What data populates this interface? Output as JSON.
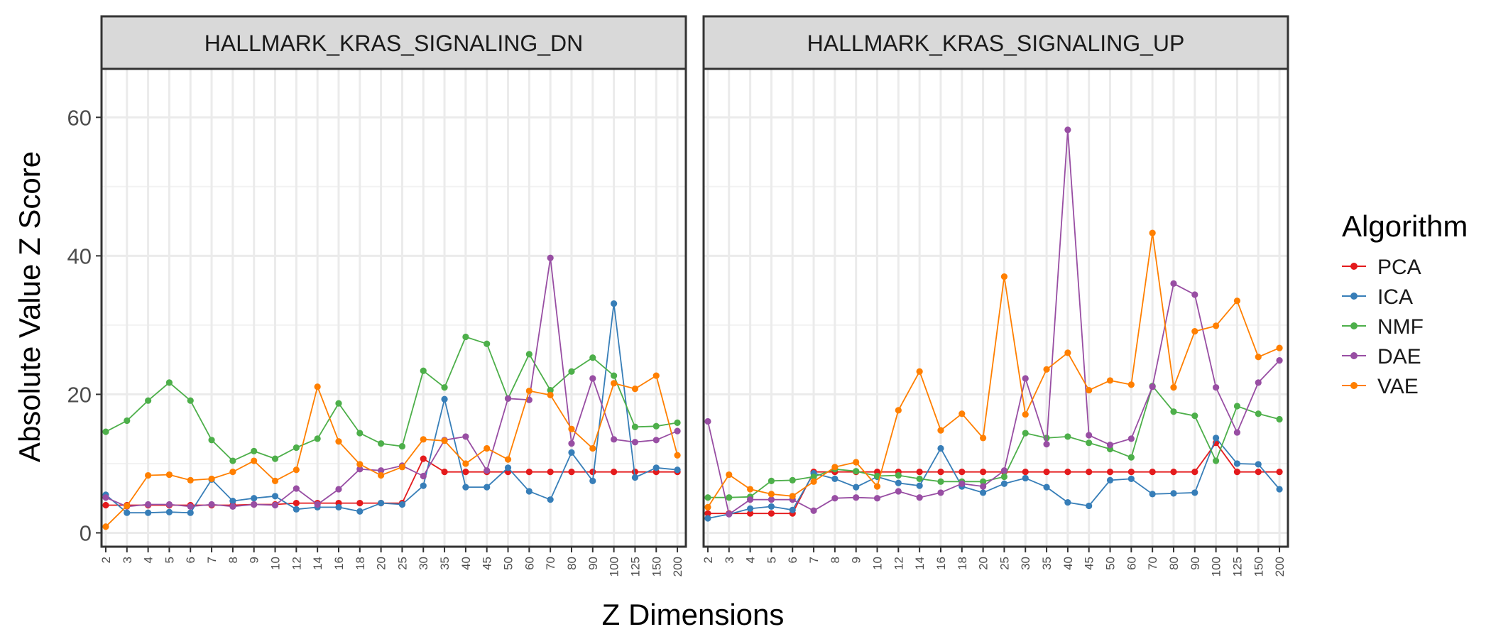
{
  "chart_data": {
    "type": "line",
    "ylabel": "Absolute Value Z Score",
    "xlabel": "Z Dimensions",
    "ylim": [
      -2,
      67
    ],
    "yticks": [
      0,
      20,
      40,
      60
    ],
    "grid": true,
    "legend": {
      "title": "Algorithm",
      "position": "right"
    },
    "categories": [
      "2",
      "3",
      "4",
      "5",
      "6",
      "7",
      "8",
      "9",
      "10",
      "12",
      "14",
      "16",
      "18",
      "20",
      "25",
      "30",
      "35",
      "40",
      "45",
      "50",
      "60",
      "70",
      "80",
      "90",
      "100",
      "125",
      "150",
      "200"
    ],
    "colors": {
      "PCA": "#e41a1c",
      "ICA": "#377eb8",
      "NMF": "#4daf4a",
      "DAE": "#984ea3",
      "VAE": "#ff7f00"
    },
    "panels": [
      {
        "title": "HALLMARK_KRAS_SIGNALING_DN",
        "series": [
          {
            "name": "PCA",
            "values": [
              4.0,
              4.0,
              4.0,
              4.0,
              4.0,
              4.0,
              4.0,
              4.1,
              4.1,
              4.3,
              4.3,
              4.3,
              4.3,
              4.3,
              4.3,
              10.7,
              8.8,
              8.8,
              8.8,
              8.8,
              8.8,
              8.8,
              8.8,
              8.8,
              8.8,
              8.8,
              8.8,
              8.8
            ]
          },
          {
            "name": "ICA",
            "values": [
              5.5,
              2.9,
              2.9,
              3.0,
              2.9,
              7.7,
              4.6,
              5.0,
              5.3,
              3.4,
              3.7,
              3.7,
              3.1,
              4.3,
              4.1,
              6.8,
              19.3,
              6.6,
              6.6,
              9.4,
              6.0,
              4.8,
              11.6,
              7.5,
              33.1,
              8.0,
              9.4,
              9.1
            ]
          },
          {
            "name": "NMF",
            "values": [
              14.6,
              16.2,
              19.1,
              21.7,
              19.1,
              13.4,
              10.4,
              11.8,
              10.7,
              12.3,
              13.6,
              18.7,
              14.4,
              12.9,
              12.5,
              23.4,
              21.0,
              28.3,
              27.3,
              19.4,
              25.8,
              20.6,
              23.3,
              25.3,
              22.7,
              15.3,
              15.4,
              15.9
            ]
          },
          {
            "name": "DAE",
            "values": [
              5.1,
              3.8,
              4.1,
              4.1,
              3.8,
              4.1,
              3.8,
              4.1,
              4.0,
              6.4,
              4.1,
              6.3,
              9.2,
              9.0,
              9.7,
              8.2,
              13.4,
              13.9,
              9.0,
              19.4,
              19.2,
              39.7,
              12.9,
              22.3,
              13.5,
              13.1,
              13.4,
              14.7
            ]
          },
          {
            "name": "VAE",
            "values": [
              0.9,
              3.9,
              8.3,
              8.4,
              7.6,
              7.8,
              8.8,
              10.4,
              7.5,
              9.1,
              21.1,
              13.2,
              9.9,
              8.3,
              9.5,
              13.5,
              13.3,
              10.0,
              12.2,
              10.6,
              20.5,
              19.9,
              15.0,
              12.2,
              21.6,
              20.8,
              22.7,
              11.2
            ]
          }
        ]
      },
      {
        "title": "HALLMARK_KRAS_SIGNALING_UP",
        "series": [
          {
            "name": "PCA",
            "values": [
              2.8,
              2.8,
              2.8,
              2.8,
              2.8,
              8.8,
              8.8,
              8.8,
              8.8,
              8.8,
              8.8,
              8.8,
              8.8,
              8.8,
              8.8,
              8.8,
              8.8,
              8.8,
              8.8,
              8.8,
              8.8,
              8.8,
              8.8,
              8.8,
              13.0,
              8.8,
              8.8,
              8.8
            ]
          },
          {
            "name": "ICA",
            "values": [
              2.1,
              2.7,
              3.5,
              3.8,
              3.3,
              8.6,
              7.8,
              6.6,
              8.1,
              7.2,
              6.8,
              12.2,
              6.7,
              5.8,
              7.1,
              7.9,
              6.6,
              4.4,
              3.9,
              7.6,
              7.8,
              5.6,
              5.7,
              5.8,
              13.7,
              10.0,
              9.9,
              6.3
            ]
          },
          {
            "name": "NMF",
            "values": [
              5.1,
              5.1,
              5.2,
              7.5,
              7.6,
              8.1,
              9.2,
              8.9,
              8.2,
              8.3,
              7.8,
              7.4,
              7.4,
              7.4,
              8.1,
              14.4,
              13.7,
              13.9,
              13.0,
              12.1,
              10.9,
              21.2,
              17.5,
              16.9,
              10.4,
              18.3,
              17.2,
              16.4
            ]
          },
          {
            "name": "DAE",
            "values": [
              16.1,
              2.7,
              4.8,
              4.8,
              4.8,
              3.2,
              5.0,
              5.1,
              5.0,
              6.0,
              5.1,
              5.8,
              7.1,
              6.7,
              9.0,
              22.3,
              12.8,
              58.2,
              14.1,
              12.7,
              13.6,
              21.1,
              36.0,
              34.4,
              21.0,
              14.5,
              21.7,
              24.9
            ]
          },
          {
            "name": "VAE",
            "values": [
              3.7,
              8.4,
              6.3,
              5.6,
              5.3,
              7.4,
              9.5,
              10.2,
              6.7,
              17.7,
              23.3,
              14.8,
              17.2,
              13.7,
              37.0,
              17.1,
              23.6,
              26.0,
              20.6,
              22.0,
              21.4,
              43.3,
              21.0,
              29.1,
              29.9,
              33.5,
              25.4,
              26.7
            ]
          }
        ]
      }
    ]
  }
}
